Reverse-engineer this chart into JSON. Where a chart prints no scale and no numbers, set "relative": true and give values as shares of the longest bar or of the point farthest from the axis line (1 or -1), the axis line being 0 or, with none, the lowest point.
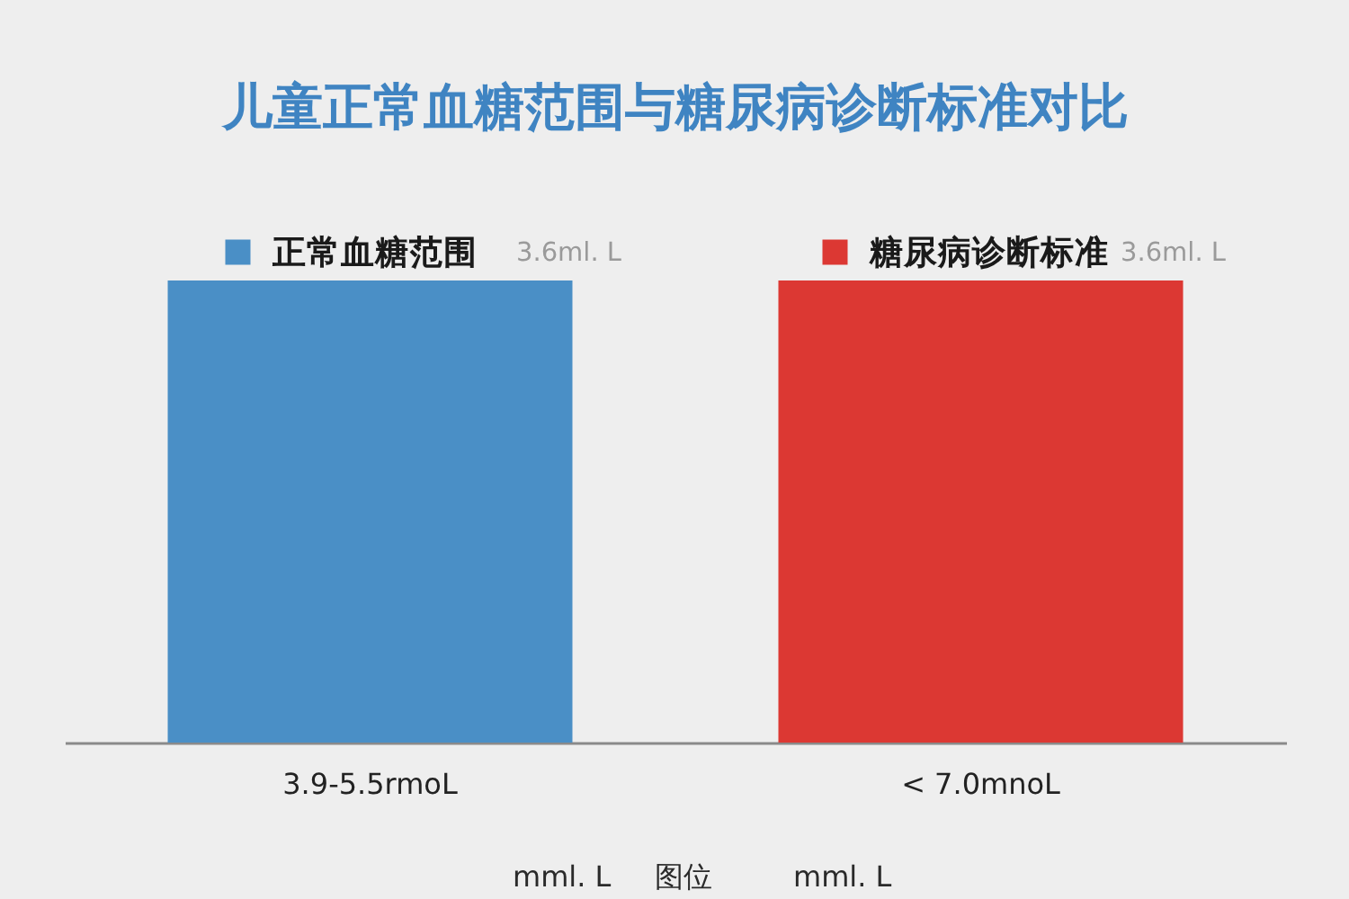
{
  "chart_data": {
    "type": "bar",
    "title": "儿童正常血糖范围与糖尿病诊断标准对比",
    "categories": [
      "3.9-5.5rmoL",
      "< 7.0mnoL"
    ],
    "series": [
      {
        "name": "正常血糖范围",
        "color": "#4a8fc6",
        "values": [
          1,
          null
        ]
      },
      {
        "name": "糖尿病诊断标准",
        "color": "#dc3833",
        "values": [
          null,
          1
        ]
      }
    ],
    "stacked": true,
    "relative": true,
    "legend": "top",
    "annotations": [
      "3.6ml. L",
      "3.6ml. L",
      "mml. L",
      "图位",
      "mml. L"
    ]
  }
}
